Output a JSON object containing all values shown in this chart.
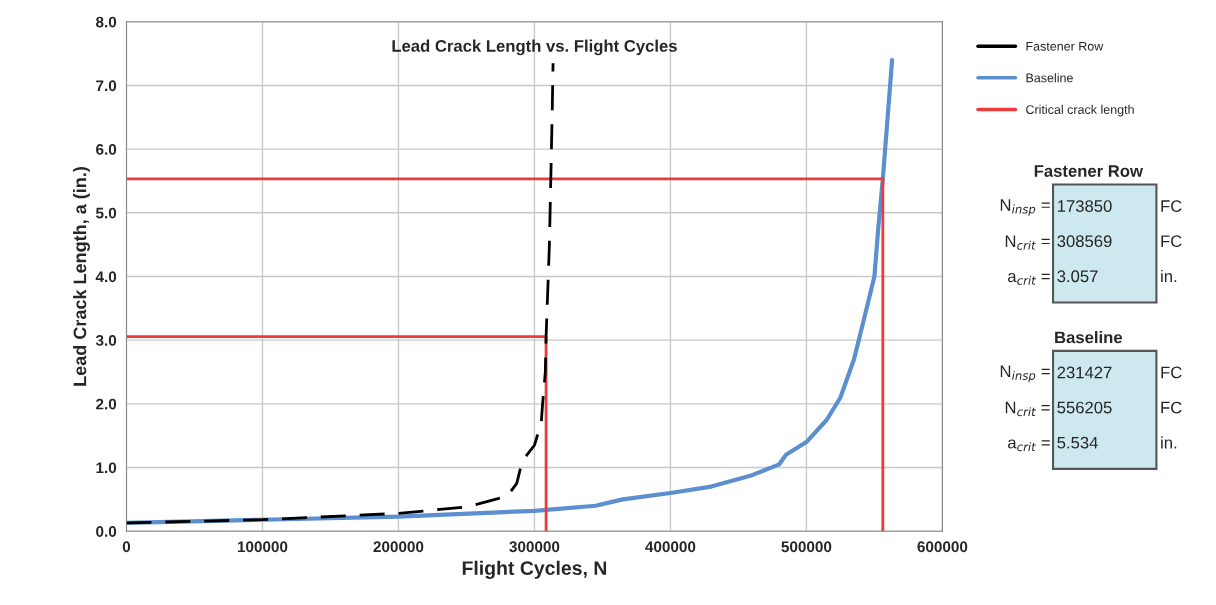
{
  "chart_data": {
    "type": "line",
    "title": "Lead Crack Length vs. Flight Cycles",
    "xlabel": "Flight Cycles, N",
    "ylabel": "Lead Crack Length, a (in.)",
    "xlim": [
      0,
      600000
    ],
    "xticks": [
      0,
      100000,
      200000,
      300000,
      400000,
      500000,
      600000
    ],
    "ylim": [
      0,
      8
    ],
    "yticks": [
      {
        "value": 0,
        "label": "0.0"
      },
      {
        "value": 1,
        "label": "1.0"
      },
      {
        "value": 2,
        "label": "2.0"
      },
      {
        "value": 3,
        "label": "3.0"
      },
      {
        "value": 4,
        "label": "4.0"
      },
      {
        "value": 5,
        "label": "5.0"
      },
      {
        "value": 6,
        "label": "6.0"
      },
      {
        "value": 7,
        "label": "7.0"
      },
      {
        "value": 8,
        "label": "8.0"
      }
    ],
    "grid": true,
    "legend": "top right",
    "marker": "none",
    "series": [
      {
        "name": "Fastener Row",
        "color": "#000000",
        "line_style": "dashed",
        "x": [
          0,
          100000,
          200000,
          250000,
          280000,
          287000,
          291000,
          300000,
          305000,
          306000,
          308000,
          308569,
          309500,
          311000,
          312000,
          313000,
          313700
        ],
        "values": [
          0.13,
          0.18,
          0.28,
          0.38,
          0.55,
          0.75,
          1.1,
          1.35,
          1.7,
          2.0,
          2.5,
          3.057,
          3.6,
          4.5,
          5.5,
          6.5,
          7.35
        ]
      },
      {
        "name": "Baseline",
        "color": "#5b8fd0",
        "line_style": "solid",
        "x": [
          0,
          100000,
          200000,
          300000,
          345000,
          365000,
          400000,
          430000,
          460000,
          480000,
          485000,
          500000,
          515000,
          525000,
          535000,
          542000,
          550000,
          553000,
          556205,
          559000,
          563000
        ],
        "values": [
          0.13,
          0.18,
          0.23,
          0.32,
          0.4,
          0.5,
          0.6,
          0.7,
          0.88,
          1.05,
          1.2,
          1.4,
          1.75,
          2.1,
          2.7,
          3.3,
          4.0,
          4.8,
          5.534,
          6.3,
          7.4
        ]
      },
      {
        "name": "Critical crack length",
        "color": "#ee3a3a",
        "line_style": "solid",
        "x": [
          0,
          308569,
          308569
        ],
        "values": [
          3.057,
          3.057,
          0
        ]
      },
      {
        "color": "#ee3a3a",
        "line_style": "solid",
        "x": [
          0,
          556205,
          556205
        ],
        "values": [
          5.534,
          5.534,
          0
        ]
      }
    ],
    "annotations": [
      "Fastener Row",
      "N$_{insp}$ =",
      "173850",
      "FC",
      "N$_{crit}$ =",
      "308569",
      "FC",
      "a$_{crit}$ =",
      "3.057",
      "in.",
      "Baseline",
      "N$_{insp}$ =",
      "231427",
      "FC",
      "N$_{crit}$ =",
      "556205",
      "FC",
      "a$_{crit}$ =",
      "5.534",
      "in."
    ]
  }
}
